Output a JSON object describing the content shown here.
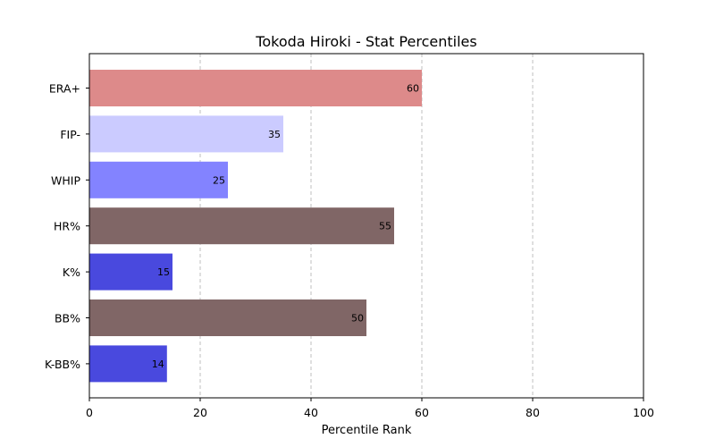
{
  "chart_data": {
    "type": "bar",
    "orientation": "horizontal",
    "title": "Tokoda Hiroki - Stat Percentiles",
    "xlabel": "Percentile Rank",
    "ylabel": "",
    "xlim": [
      0,
      100
    ],
    "xticks": [
      0,
      20,
      40,
      60,
      80,
      100
    ],
    "grid": "x dashed",
    "categories": [
      "ERA+",
      "FIP-",
      "WHIP",
      "HR%",
      "K%",
      "BB%",
      "K-BB%"
    ],
    "values": [
      60,
      35,
      25,
      55,
      15,
      50,
      14
    ],
    "colors": [
      "#dd8a8a",
      "#cbcbff",
      "#8383ff",
      "#806666",
      "#4949de",
      "#806666",
      "#4949de"
    ]
  }
}
